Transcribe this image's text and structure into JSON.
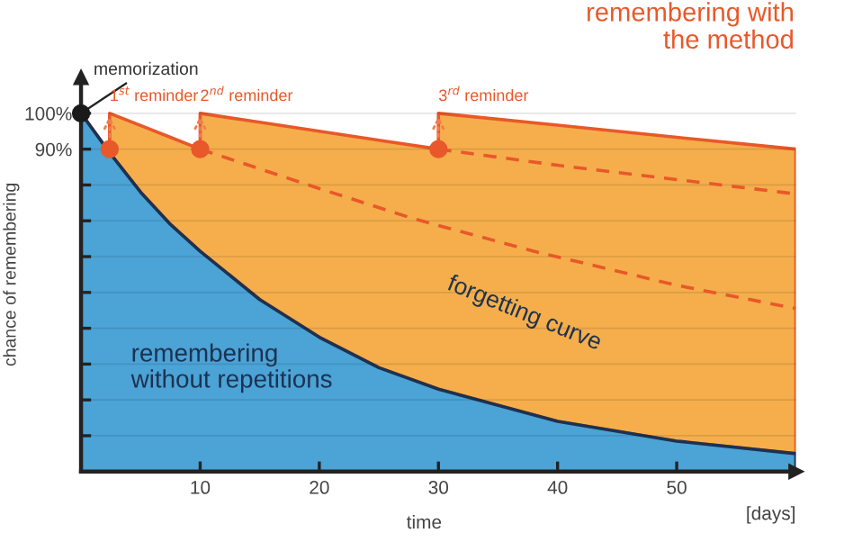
{
  "chart_data": {
    "type": "area",
    "stacked": true,
    "legend": false,
    "xlabel": "time",
    "ylabel": "chance of remembering",
    "xlim": [
      0,
      60
    ],
    "ylim": [
      0,
      110
    ],
    "xticks": [
      10,
      20,
      30,
      40,
      50
    ],
    "yticks": [
      {
        "value": 10,
        "label": null
      },
      {
        "value": 20,
        "label": null
      },
      {
        "value": 30,
        "label": null
      },
      {
        "value": 40,
        "label": null
      },
      {
        "value": 50,
        "label": null
      },
      {
        "value": 60,
        "label": null
      },
      {
        "value": 70,
        "label": null
      },
      {
        "value": 80,
        "label": null
      },
      {
        "value": 90,
        "label": "90%"
      },
      {
        "value": 100,
        "label": "100%"
      }
    ],
    "grid": "y",
    "x": [
      0,
      2.4,
      2.4,
      5,
      7.5,
      10,
      10,
      15,
      20,
      25,
      30,
      30,
      40,
      50,
      60
    ],
    "series": [
      {
        "name": "remembering without repetitions",
        "color": "#4ba3d6",
        "values": [
          100,
          89,
          89,
          78,
          69,
          61.5,
          61.5,
          48,
          37.5,
          29,
          23,
          23,
          14,
          8.5,
          5
        ]
      },
      {
        "name": "remembering with the method",
        "color": "#f5ae4b",
        "values": [
          0,
          0,
          11,
          18.6,
          24.3,
          28.5,
          38.5,
          49.5,
          57.5,
          63.5,
          67,
          77,
          82.7,
          84.8,
          85
        ]
      },
      {
        "type": "line",
        "line_style": "dashed",
        "color": "#e8582a",
        "x": [
          10,
          20,
          28,
          38,
          50,
          60
        ],
        "values": [
          90,
          79,
          70.5,
          61.5,
          52,
          45.5
        ]
      },
      {
        "type": "line",
        "line_style": "dashed",
        "color": "#e8582a",
        "x": [
          30,
          40,
          50,
          60
        ],
        "values": [
          90,
          85.5,
          81.5,
          77.5
        ]
      },
      {
        "type": "scatter",
        "marker": "circle",
        "color": "#e8582a",
        "x": [
          2.4,
          10,
          30
        ],
        "values": [
          90,
          90,
          90
        ]
      },
      {
        "type": "scatter",
        "marker": "circle",
        "color": "#1a1a1a",
        "x": [
          0
        ],
        "values": [
          100
        ]
      }
    ],
    "annotations": [
      {
        "text": "memorization",
        "x": 0,
        "y": 100
      },
      {
        "text": "1$^{st}$ reminder",
        "x": 2.4,
        "y": 100
      },
      {
        "text": "2$^{nd}$ reminder",
        "x": 10,
        "y": 100
      },
      {
        "text": "3$^{rd}$ reminder",
        "x": 30,
        "y": 100
      },
      "forgetting curve",
      "[days]"
    ]
  }
}
